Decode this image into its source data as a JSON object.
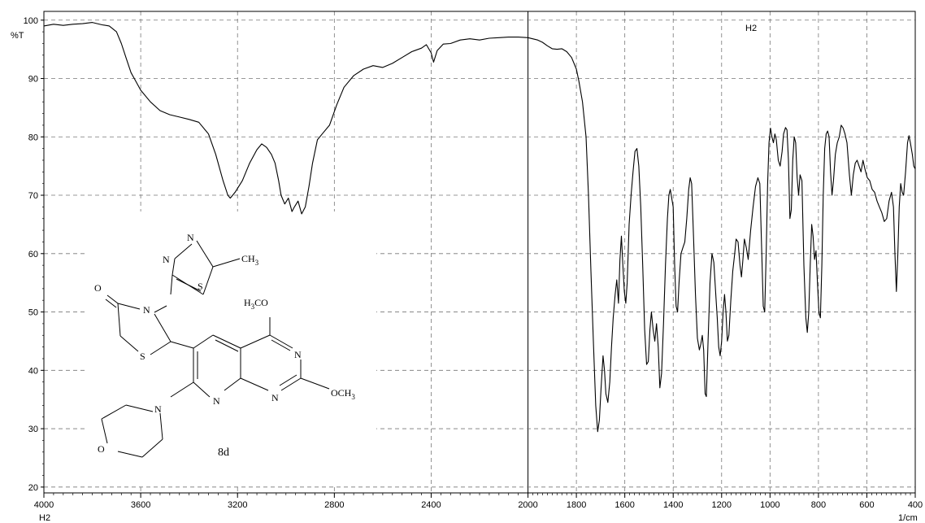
{
  "chart_data": {
    "type": "line",
    "title": "H2",
    "ylabel": "%T",
    "xlabel": "1/cm",
    "x_corner_label": "H2",
    "xlim": [
      4000,
      400
    ],
    "ylim": [
      19,
      101.5
    ],
    "x_ticks": [
      4000,
      3600,
      3200,
      2800,
      2400,
      2000,
      1800,
      1600,
      1400,
      1200,
      1000,
      800,
      600,
      400
    ],
    "y_ticks": [
      20,
      30,
      40,
      50,
      60,
      70,
      80,
      90,
      100
    ],
    "grid": true,
    "series": [
      {
        "color": "#000000",
        "points": [
          [
            4000,
            99.0
          ],
          [
            3960,
            99.3
          ],
          [
            3920,
            99.1
          ],
          [
            3880,
            99.3
          ],
          [
            3840,
            99.4
          ],
          [
            3800,
            99.6
          ],
          [
            3760,
            99.2
          ],
          [
            3730,
            99.0
          ],
          [
            3700,
            98.0
          ],
          [
            3680,
            96.0
          ],
          [
            3660,
            93.5
          ],
          [
            3640,
            91.0
          ],
          [
            3620,
            89.5
          ],
          [
            3600,
            88.0
          ],
          [
            3560,
            86.0
          ],
          [
            3520,
            84.5
          ],
          [
            3480,
            83.8
          ],
          [
            3440,
            83.4
          ],
          [
            3400,
            83.0
          ],
          [
            3360,
            82.5
          ],
          [
            3320,
            80.5
          ],
          [
            3290,
            77.0
          ],
          [
            3260,
            72.5
          ],
          [
            3240,
            70.0
          ],
          [
            3230,
            69.5
          ],
          [
            3210,
            70.5
          ],
          [
            3180,
            72.5
          ],
          [
            3150,
            75.5
          ],
          [
            3120,
            77.8
          ],
          [
            3100,
            78.8
          ],
          [
            3080,
            78.2
          ],
          [
            3060,
            77.0
          ],
          [
            3045,
            75.5
          ],
          [
            3030,
            72.5
          ],
          [
            3020,
            70.0
          ],
          [
            3005,
            68.5
          ],
          [
            2990,
            69.5
          ],
          [
            2975,
            67.2
          ],
          [
            2965,
            68.0
          ],
          [
            2950,
            69.0
          ],
          [
            2935,
            66.8
          ],
          [
            2920,
            68.0
          ],
          [
            2905,
            71.5
          ],
          [
            2890,
            75.5
          ],
          [
            2870,
            79.5
          ],
          [
            2850,
            80.5
          ],
          [
            2820,
            82.0
          ],
          [
            2790,
            85.5
          ],
          [
            2760,
            88.5
          ],
          [
            2720,
            90.5
          ],
          [
            2680,
            91.6
          ],
          [
            2640,
            92.2
          ],
          [
            2600,
            91.9
          ],
          [
            2560,
            92.6
          ],
          [
            2520,
            93.6
          ],
          [
            2480,
            94.6
          ],
          [
            2440,
            95.2
          ],
          [
            2420,
            95.8
          ],
          [
            2400,
            94.4
          ],
          [
            2390,
            92.8
          ],
          [
            2375,
            94.8
          ],
          [
            2350,
            95.9
          ],
          [
            2320,
            96.0
          ],
          [
            2280,
            96.6
          ],
          [
            2240,
            96.8
          ],
          [
            2200,
            96.6
          ],
          [
            2160,
            96.9
          ],
          [
            2120,
            97.0
          ],
          [
            2080,
            97.1
          ],
          [
            2040,
            97.1
          ],
          [
            2000,
            97.0
          ],
          [
            1960,
            96.6
          ],
          [
            1940,
            96.2
          ],
          [
            1920,
            95.6
          ],
          [
            1900,
            95.1
          ],
          [
            1880,
            95.0
          ],
          [
            1860,
            95.1
          ],
          [
            1840,
            94.6
          ],
          [
            1820,
            93.6
          ],
          [
            1800,
            91.6
          ],
          [
            1790,
            89.6
          ],
          [
            1775,
            86.0
          ],
          [
            1760,
            80.0
          ],
          [
            1750,
            70.0
          ],
          [
            1740,
            57.0
          ],
          [
            1730,
            45.0
          ],
          [
            1720,
            34.0
          ],
          [
            1712,
            29.5
          ],
          [
            1705,
            31.5
          ],
          [
            1698,
            37.0
          ],
          [
            1690,
            42.5
          ],
          [
            1684,
            40.0
          ],
          [
            1678,
            36.0
          ],
          [
            1670,
            34.5
          ],
          [
            1662,
            38.0
          ],
          [
            1655,
            44.0
          ],
          [
            1648,
            49.0
          ],
          [
            1640,
            53.0
          ],
          [
            1633,
            55.5
          ],
          [
            1626,
            51.5
          ],
          [
            1620,
            59.0
          ],
          [
            1614,
            63.0
          ],
          [
            1608,
            58.0
          ],
          [
            1602,
            53.5
          ],
          [
            1596,
            51.5
          ],
          [
            1590,
            55.0
          ],
          [
            1582,
            65.0
          ],
          [
            1574,
            70.0
          ],
          [
            1566,
            74.0
          ],
          [
            1558,
            77.5
          ],
          [
            1550,
            78.0
          ],
          [
            1542,
            75.0
          ],
          [
            1534,
            68.0
          ],
          [
            1526,
            58.0
          ],
          [
            1518,
            47.0
          ],
          [
            1510,
            41.0
          ],
          [
            1503,
            41.5
          ],
          [
            1496,
            47.0
          ],
          [
            1490,
            50.0
          ],
          [
            1483,
            47.0
          ],
          [
            1476,
            45.0
          ],
          [
            1469,
            48.0
          ],
          [
            1462,
            44.0
          ],
          [
            1455,
            37.0
          ],
          [
            1448,
            39.5
          ],
          [
            1440,
            48.0
          ],
          [
            1432,
            58.0
          ],
          [
            1424,
            66.0
          ],
          [
            1418,
            70.0
          ],
          [
            1412,
            71.0
          ],
          [
            1406,
            69.5
          ],
          [
            1400,
            68.0
          ],
          [
            1394,
            58.0
          ],
          [
            1388,
            51.0
          ],
          [
            1382,
            50.0
          ],
          [
            1376,
            55.0
          ],
          [
            1368,
            60.0
          ],
          [
            1360,
            61.0
          ],
          [
            1352,
            62.0
          ],
          [
            1344,
            66.0
          ],
          [
            1336,
            71.0
          ],
          [
            1330,
            73.0
          ],
          [
            1324,
            72.0
          ],
          [
            1316,
            63.0
          ],
          [
            1308,
            53.0
          ],
          [
            1300,
            45.5
          ],
          [
            1292,
            43.5
          ],
          [
            1286,
            44.5
          ],
          [
            1280,
            46.0
          ],
          [
            1274,
            43.5
          ],
          [
            1268,
            36.0
          ],
          [
            1263,
            35.5
          ],
          [
            1256,
            45.0
          ],
          [
            1248,
            55.0
          ],
          [
            1240,
            60.0
          ],
          [
            1232,
            58.5
          ],
          [
            1224,
            53.0
          ],
          [
            1218,
            49.0
          ],
          [
            1212,
            44.0
          ],
          [
            1206,
            42.5
          ],
          [
            1200,
            45.0
          ],
          [
            1194,
            50.0
          ],
          [
            1188,
            53.0
          ],
          [
            1182,
            50.0
          ],
          [
            1176,
            45.0
          ],
          [
            1170,
            46.0
          ],
          [
            1162,
            52.0
          ],
          [
            1154,
            57.0
          ],
          [
            1146,
            60.0
          ],
          [
            1140,
            62.5
          ],
          [
            1132,
            62.0
          ],
          [
            1124,
            58.0
          ],
          [
            1118,
            56.0
          ],
          [
            1112,
            59.0
          ],
          [
            1106,
            62.5
          ],
          [
            1098,
            61.0
          ],
          [
            1090,
            59.0
          ],
          [
            1080,
            64.0
          ],
          [
            1070,
            68.0
          ],
          [
            1060,
            71.5
          ],
          [
            1050,
            73.0
          ],
          [
            1042,
            72.0
          ],
          [
            1034,
            60.0
          ],
          [
            1028,
            51.0
          ],
          [
            1022,
            50.0
          ],
          [
            1016,
            60.0
          ],
          [
            1010,
            72.0
          ],
          [
            1004,
            79.0
          ],
          [
            998,
            81.5
          ],
          [
            992,
            80.0
          ],
          [
            986,
            79.0
          ],
          [
            980,
            80.5
          ],
          [
            974,
            79.5
          ],
          [
            966,
            76.0
          ],
          [
            958,
            75.0
          ],
          [
            950,
            77.5
          ],
          [
            944,
            80.5
          ],
          [
            936,
            81.6
          ],
          [
            930,
            81.2
          ],
          [
            924,
            76.0
          ],
          [
            918,
            66.0
          ],
          [
            912,
            67.5
          ],
          [
            906,
            76.0
          ],
          [
            900,
            80.0
          ],
          [
            894,
            79.0
          ],
          [
            888,
            73.0
          ],
          [
            882,
            70.0
          ],
          [
            876,
            73.5
          ],
          [
            868,
            72.5
          ],
          [
            860,
            58.0
          ],
          [
            852,
            49.0
          ],
          [
            846,
            46.5
          ],
          [
            840,
            50.0
          ],
          [
            834,
            58.0
          ],
          [
            828,
            65.0
          ],
          [
            822,
            63.0
          ],
          [
            816,
            59.0
          ],
          [
            810,
            60.5
          ],
          [
            804,
            55.0
          ],
          [
            798,
            50.0
          ],
          [
            792,
            49.0
          ],
          [
            786,
            58.0
          ],
          [
            780,
            70.0
          ],
          [
            774,
            78.0
          ],
          [
            768,
            80.5
          ],
          [
            762,
            81.0
          ],
          [
            756,
            80.0
          ],
          [
            750,
            74.0
          ],
          [
            744,
            70.0
          ],
          [
            738,
            72.5
          ],
          [
            730,
            77.0
          ],
          [
            722,
            79.0
          ],
          [
            714,
            80.0
          ],
          [
            706,
            82.0
          ],
          [
            698,
            81.5
          ],
          [
            690,
            80.5
          ],
          [
            682,
            79.0
          ],
          [
            672,
            73.5
          ],
          [
            664,
            70.0
          ],
          [
            656,
            73.5
          ],
          [
            648,
            75.5
          ],
          [
            640,
            76.0
          ],
          [
            632,
            75.0
          ],
          [
            624,
            74.0
          ],
          [
            616,
            76.0
          ],
          [
            608,
            74.5
          ],
          [
            598,
            73.0
          ],
          [
            588,
            72.5
          ],
          [
            578,
            71.0
          ],
          [
            568,
            70.5
          ],
          [
            558,
            69.0
          ],
          [
            548,
            68.0
          ],
          [
            538,
            67.0
          ],
          [
            528,
            65.5
          ],
          [
            518,
            66.0
          ],
          [
            508,
            69.0
          ],
          [
            498,
            70.5
          ],
          [
            490,
            68.0
          ],
          [
            484,
            60.0
          ],
          [
            478,
            53.5
          ],
          [
            472,
            60.0
          ],
          [
            466,
            68.0
          ],
          [
            460,
            72.0
          ],
          [
            454,
            70.5
          ],
          [
            448,
            70.0
          ],
          [
            440,
            74.0
          ],
          [
            432,
            79.0
          ],
          [
            426,
            80.2
          ],
          [
            420,
            79.0
          ],
          [
            412,
            77.0
          ],
          [
            406,
            75.0
          ],
          [
            400,
            74.5
          ]
        ]
      }
    ]
  },
  "structure": {
    "compound_label": "8d",
    "atom_labels": {
      "thiadiazole_n1": "N",
      "thiadiazole_n2": "N",
      "thiadiazole_s": "S",
      "methyl": "CH",
      "methyl_sub": "3",
      "carbonyl_o": "O",
      "thiazolidinone_n": "N",
      "thiazolidinone_s": "S",
      "methoxy_top": "H",
      "methoxy_top_sub": "3",
      "methoxy_top_rest": "CO",
      "pyrimidine_n_right": "N",
      "pyrimidine_n_bottom": "N",
      "methoxy_right": "OCH",
      "methoxy_right_sub": "3",
      "pyridine_n": "N",
      "morpholine_n": "N",
      "morpholine_o": "O"
    }
  }
}
